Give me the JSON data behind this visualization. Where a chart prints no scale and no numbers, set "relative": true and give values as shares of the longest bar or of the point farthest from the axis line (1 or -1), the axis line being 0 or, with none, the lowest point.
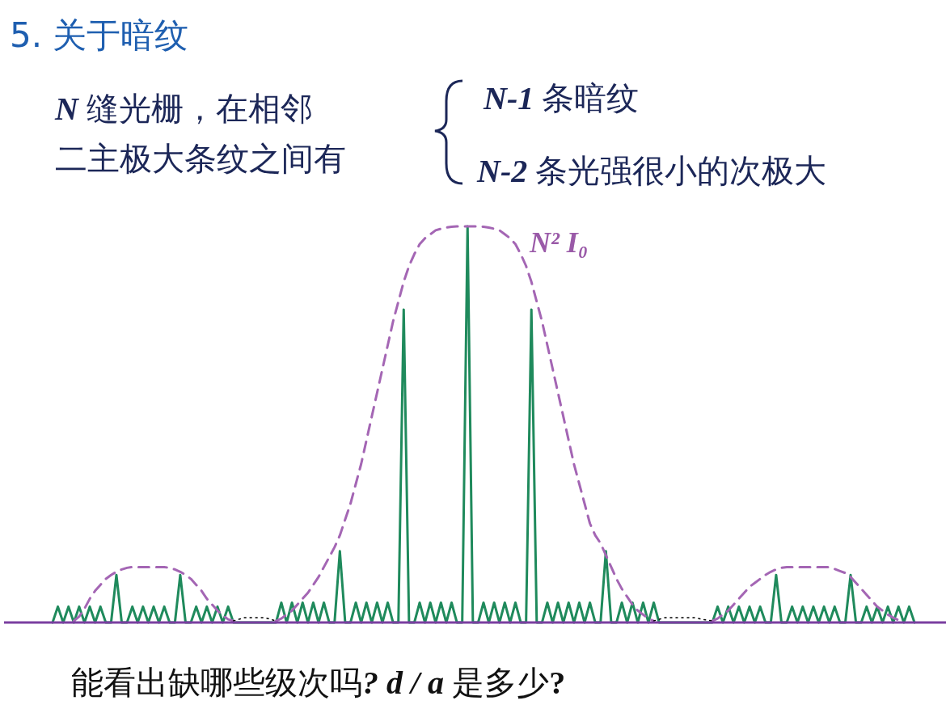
{
  "chart_data": {
    "type": "line",
    "relative": true,
    "title": "5. 关于暗纹",
    "annotations": [
      "N 缝光栅，在相邻二主极大条纹之间有",
      "N-1 条暗纹",
      "N-2 条光强很小的次极大",
      "N² I₀",
      "能看出缺哪些级次吗? d / a 是多少?"
    ],
    "categories": [
      null,
      null,
      null,
      null,
      null,
      null,
      null,
      null,
      null,
      null,
      null,
      null,
      null,
      null,
      null,
      null,
      null,
      null,
      null,
      null,
      null,
      null,
      null,
      null,
      null,
      null,
      null,
      null,
      null,
      null,
      null,
      null,
      null,
      null,
      null,
      null,
      null,
      null,
      null,
      null,
      null,
      null,
      null,
      null,
      null,
      null,
      null,
      null,
      null,
      null,
      null,
      null,
      null,
      null,
      null,
      null,
      null,
      null,
      null,
      null,
      null,
      null,
      null,
      null,
      null,
      null,
      null,
      null,
      null,
      null,
      null,
      null,
      null,
      null,
      null,
      null,
      null,
      null,
      null,
      null,
      null,
      null,
      null,
      null,
      null,
      null,
      null,
      null,
      null,
      null,
      null,
      null,
      null,
      null,
      null,
      null,
      null,
      null,
      null,
      null,
      null,
      null,
      null,
      null,
      null,
      null,
      null,
      null,
      null,
      null,
      null,
      null,
      null,
      null,
      null,
      null,
      null,
      null,
      null,
      null,
      null,
      null,
      null,
      null,
      null,
      null,
      null,
      null,
      null,
      null,
      null,
      null,
      null,
      null,
      null,
      null,
      null,
      null,
      null,
      null,
      null,
      null,
      null,
      null,
      null,
      null,
      null,
      null,
      null,
      null,
      null,
      null,
      null,
      null,
      null,
      null,
      null,
      null,
      null,
      null,
      null,
      null,
      null
    ],
    "series": [
      {
        "color": "#1f8a5c",
        "line_style": "solid",
        "values": [
          0,
          0.04,
          0,
          0.04,
          0,
          0.04,
          0,
          0.04,
          0,
          0.04,
          0,
          0,
          0.12,
          0,
          0,
          0.04,
          0,
          0.04,
          0,
          0.04,
          0,
          0.04,
          0,
          0,
          0.12,
          0,
          0,
          0.04,
          0,
          0.04,
          0,
          0.04,
          0,
          0.04,
          0,
          0,
          0,
          0,
          0,
          0,
          0,
          0,
          0,
          0.05,
          0,
          0.05,
          0,
          0.05,
          0,
          0.05,
          0,
          0.05,
          0,
          0,
          0.18,
          0,
          0,
          0.05,
          0,
          0.05,
          0,
          0.05,
          0,
          0.05,
          0,
          0,
          0.79,
          0,
          0,
          0.05,
          0,
          0.05,
          0,
          0.05,
          0,
          0.05,
          0,
          0,
          1,
          0,
          0,
          0.05,
          0,
          0.05,
          0,
          0.05,
          0,
          0.05,
          0,
          0,
          0.79,
          0,
          0,
          0.05,
          0,
          0.05,
          0,
          0.05,
          0,
          0.05,
          0,
          0.05,
          0,
          0,
          0.18,
          0,
          0,
          0.05,
          0,
          0.05,
          0,
          0.05,
          0,
          0.05,
          0,
          0,
          0,
          0,
          0,
          0,
          0,
          0,
          0,
          0,
          0,
          0.04,
          0,
          0.04,
          0,
          0.04,
          0,
          0.04,
          0,
          0.04,
          0,
          0,
          0.12,
          0,
          0,
          0.04,
          0,
          0.04,
          0,
          0.04,
          0,
          0.04,
          0,
          0.04,
          0,
          0,
          0.12,
          0,
          0,
          0.04,
          0,
          0.04,
          0,
          0.04,
          0,
          0.04,
          0,
          0.04,
          0
        ]
      },
      {
        "color": "#a466b4",
        "line_style": "dashed",
        "values": [
          null,
          null,
          null,
          null,
          0.004,
          0.015,
          0.035,
          0.06,
          0.08,
          0.095,
          0.11,
          0.12,
          0.128,
          0.134,
          0.138,
          0.14,
          0.14,
          0.14,
          0.14,
          0.14,
          0.14,
          0.14,
          0.138,
          0.134,
          0.128,
          0.12,
          0.11,
          0.095,
          0.08,
          0.06,
          0.045,
          0.03,
          0.018,
          0.008,
          0.004,
          null,
          null,
          null,
          null,
          null,
          null,
          null,
          0.004,
          0.01,
          0.02,
          0.03,
          0.045,
          0.06,
          0.075,
          0.095,
          0.115,
          0.14,
          0.165,
          0.19,
          0.22,
          0.26,
          0.3,
          0.35,
          0.4,
          0.46,
          0.52,
          0.58,
          0.64,
          0.7,
          0.76,
          0.81,
          0.86,
          0.9,
          0.93,
          0.955,
          0.97,
          0.98,
          0.99,
          0.994,
          0.997,
          0.999,
          1,
          1,
          1,
          1,
          1,
          0.999,
          0.997,
          0.994,
          0.99,
          0.98,
          0.97,
          0.955,
          0.93,
          0.9,
          0.86,
          0.81,
          0.76,
          0.7,
          0.64,
          0.58,
          0.52,
          0.46,
          0.4,
          0.35,
          0.3,
          0.25,
          0.22,
          0.2,
          0.17,
          0.14,
          0.11,
          0.085,
          0.065,
          0.045,
          0.03,
          0.02,
          0.01,
          0.004,
          null,
          null,
          null,
          null,
          null,
          null,
          null,
          null,
          null,
          null,
          0.004,
          0.01,
          0.02,
          0.03,
          0.045,
          0.06,
          0.075,
          0.09,
          0.1,
          0.11,
          0.12,
          0.128,
          0.134,
          0.138,
          0.14,
          0.14,
          0.14,
          0.14,
          0.14,
          0.14,
          0.14,
          0.14,
          0.14,
          0.135,
          0.13,
          0.125,
          0.115,
          0.1,
          0.085,
          0.07,
          0.055,
          0.04,
          0.03,
          0.02,
          0.012,
          0.006,
          0.004,
          null,
          null
        ]
      },
      {
        "color": "#000000",
        "line_style": "dotted",
        "values": [
          null,
          null,
          null,
          null,
          null,
          null,
          null,
          null,
          null,
          null,
          null,
          null,
          null,
          null,
          null,
          null,
          null,
          null,
          null,
          null,
          null,
          null,
          null,
          null,
          null,
          null,
          null,
          null,
          null,
          null,
          null,
          null,
          null,
          null,
          0.004,
          0.008,
          0.012,
          0.012,
          0.012,
          0.012,
          0.012,
          0.008,
          0.004,
          null,
          null,
          null,
          null,
          null,
          null,
          null,
          null,
          null,
          null,
          null,
          null,
          null,
          null,
          null,
          null,
          null,
          null,
          null,
          null,
          null,
          null,
          null,
          null,
          null,
          null,
          null,
          null,
          null,
          null,
          null,
          null,
          null,
          null,
          null,
          null,
          null,
          null,
          null,
          null,
          null,
          null,
          null,
          null,
          null,
          null,
          null,
          null,
          null,
          null,
          null,
          null,
          null,
          null,
          null,
          null,
          null,
          null,
          null,
          null,
          null,
          null,
          null,
          null,
          null,
          null,
          null,
          null,
          null,
          null,
          0.004,
          0.008,
          0.012,
          0.012,
          0.012,
          0.012,
          0.012,
          0.012,
          0.012,
          0.008,
          0.006,
          0.004,
          null,
          null,
          null,
          null,
          null,
          null,
          null,
          null,
          null,
          null,
          null,
          null,
          null,
          null,
          null,
          null,
          null,
          null,
          null,
          null,
          null,
          null,
          null,
          null,
          null,
          null,
          null,
          null,
          null,
          null,
          null,
          null,
          null,
          null,
          null,
          null,
          null,
          null
        ]
      }
    ]
  }
}
